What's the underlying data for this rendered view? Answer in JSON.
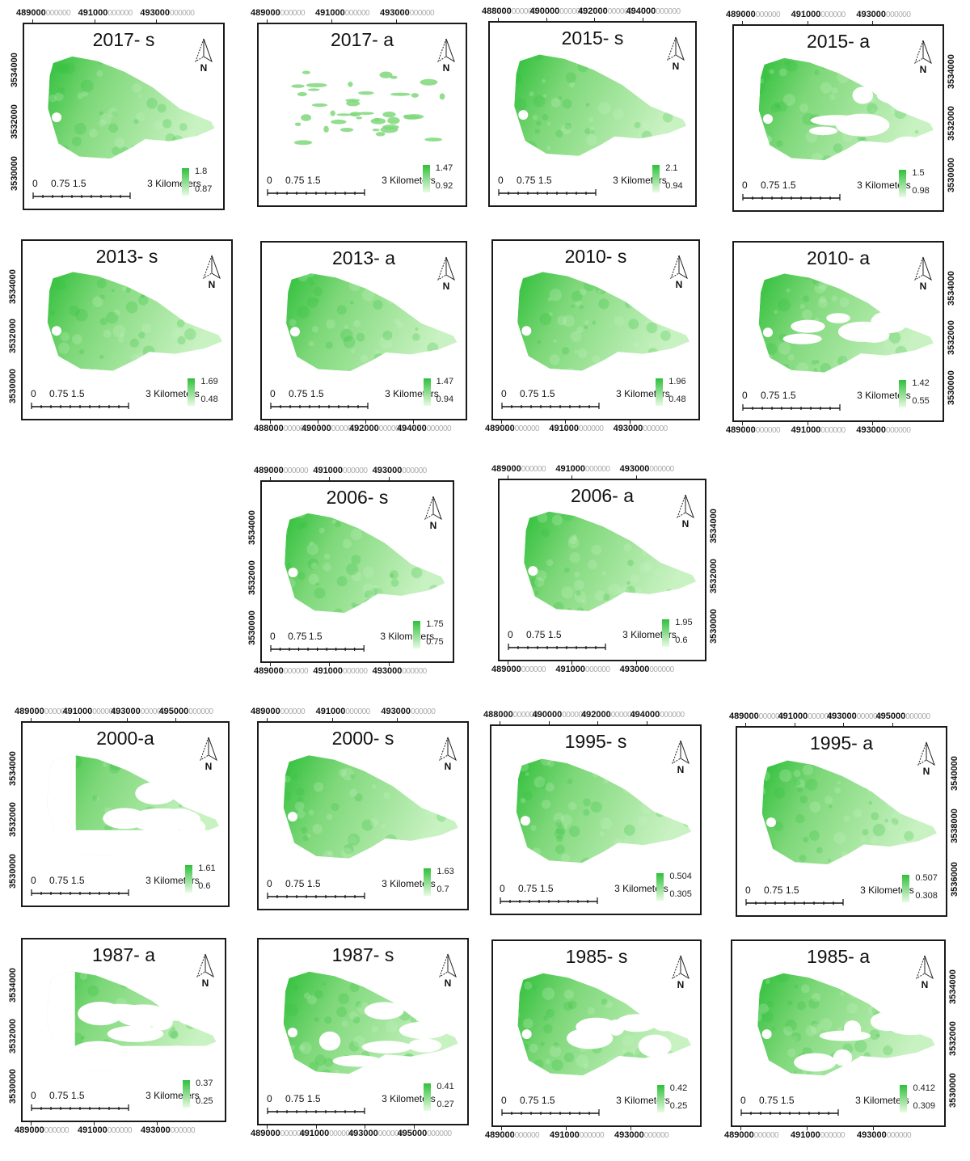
{
  "panels": [
    {
      "id": "p2017s",
      "title": "2017- s",
      "legend_max": "1.8",
      "legend_min": "0.87",
      "x_axis_pos": "top",
      "x_axis_labels": [
        "489000",
        "491000",
        "493000"
      ],
      "y_axis_pos": "left",
      "y_axis_labels": [
        "3534000",
        "3532000",
        "3530000"
      ],
      "coverage": "full"
    },
    {
      "id": "p2017a",
      "title": "2017- a",
      "legend_max": "1.47",
      "legend_min": "0.92",
      "x_axis_pos": "top",
      "x_axis_labels": [
        "489000",
        "491000",
        "493000"
      ],
      "y_axis_pos": "none",
      "y_axis_labels": [],
      "coverage": "sparse"
    },
    {
      "id": "p2015s",
      "title": "2015- s",
      "legend_max": "2.1",
      "legend_min": "0.94",
      "x_axis_pos": "top",
      "x_axis_labels": [
        "488000",
        "490000",
        "492000",
        "494000"
      ],
      "y_axis_pos": "none",
      "y_axis_labels": [],
      "coverage": "full"
    },
    {
      "id": "p2015a",
      "title": "2015- a",
      "legend_max": "1.5",
      "legend_min": "0.98",
      "x_axis_pos": "top",
      "x_axis_labels": [
        "489000",
        "491000",
        "493000"
      ],
      "y_axis_pos": "right",
      "y_axis_labels": [
        "3534000",
        "3532000",
        "3530000"
      ],
      "coverage": "partial"
    },
    {
      "id": "p2013s",
      "title": "2013- s",
      "legend_max": "1.69",
      "legend_min": "0.48",
      "x_axis_pos": "none",
      "x_axis_labels": [],
      "y_axis_pos": "left",
      "y_axis_labels": [
        "3534000",
        "3532000",
        "3530000"
      ],
      "coverage": "full"
    },
    {
      "id": "p2013a",
      "title": "2013- a",
      "legend_max": "1.47",
      "legend_min": "0.94",
      "x_axis_pos": "bottom",
      "x_axis_labels": [
        "488000",
        "490000",
        "492000",
        "494000"
      ],
      "y_axis_pos": "none",
      "y_axis_labels": [],
      "coverage": "full"
    },
    {
      "id": "p2010s",
      "title": "2010- s",
      "legend_max": "1.96",
      "legend_min": "0.48",
      "x_axis_pos": "bottom",
      "x_axis_labels": [
        "489000",
        "491000",
        "493000"
      ],
      "y_axis_pos": "none",
      "y_axis_labels": [],
      "coverage": "full"
    },
    {
      "id": "p2010a",
      "title": "2010- a",
      "legend_max": "1.42",
      "legend_min": "0.55",
      "x_axis_pos": "bottom",
      "x_axis_labels": [
        "489000",
        "491000",
        "493000"
      ],
      "y_axis_pos": "right",
      "y_axis_labels": [
        "3534000",
        "3532000",
        "3530000"
      ],
      "coverage": "partial"
    },
    {
      "id": "p2006s",
      "title": "2006- s",
      "legend_max": "1.75",
      "legend_min": "0.75",
      "x_axis_pos": "both",
      "x_axis_labels": [
        "489000",
        "491000",
        "493000"
      ],
      "y_axis_pos": "left",
      "y_axis_labels": [
        "3534000",
        "3532000",
        "3530000"
      ],
      "coverage": "full"
    },
    {
      "id": "p2006a",
      "title": "2006- a",
      "legend_max": "1.95",
      "legend_min": "0.6",
      "x_axis_pos": "both",
      "x_axis_labels": [
        "489000",
        "491000",
        "493000"
      ],
      "y_axis_pos": "right",
      "y_axis_labels": [
        "3534000",
        "3532000",
        "3530000"
      ],
      "coverage": "full"
    },
    {
      "id": "p2000a",
      "title": "2000-a",
      "legend_max": "1.61",
      "legend_min": "0.6",
      "x_axis_pos": "top",
      "x_axis_labels": [
        "489000",
        "491000",
        "493000",
        "495000"
      ],
      "y_axis_pos": "left",
      "y_axis_labels": [
        "3534000",
        "3532000",
        "3530000"
      ],
      "coverage": "small"
    },
    {
      "id": "p2000s",
      "title": "2000- s",
      "legend_max": "1.63",
      "legend_min": "0.7",
      "x_axis_pos": "top",
      "x_axis_labels": [
        "489000",
        "491000",
        "493000"
      ],
      "y_axis_pos": "none",
      "y_axis_labels": [],
      "coverage": "full"
    },
    {
      "id": "p1995s",
      "title": "1995- s",
      "legend_max": "0.504",
      "legend_min": "0.305",
      "x_axis_pos": "top",
      "x_axis_labels": [
        "488000",
        "490000",
        "492000",
        "494000"
      ],
      "y_axis_pos": "none",
      "y_axis_labels": [],
      "coverage": "full"
    },
    {
      "id": "p1995a",
      "title": "1995- a",
      "legend_max": "0.507",
      "legend_min": "0.308",
      "x_axis_pos": "top",
      "x_axis_labels": [
        "489000",
        "491000",
        "493000",
        "495000"
      ],
      "y_axis_pos": "right",
      "y_axis_labels": [
        "3540000",
        "3538000",
        "3536000"
      ],
      "coverage": "full"
    },
    {
      "id": "p1987a",
      "title": "1987- a",
      "legend_max": "0.37",
      "legend_min": "0.25",
      "x_axis_pos": "bottom",
      "x_axis_labels": [
        "489000",
        "491000",
        "493000"
      ],
      "y_axis_pos": "left",
      "y_axis_labels": [
        "3534000",
        "3532000",
        "3530000"
      ],
      "coverage": "small"
    },
    {
      "id": "p1987s",
      "title": "1987- s",
      "legend_max": "0.41",
      "legend_min": "0.27",
      "x_axis_pos": "bottom",
      "x_axis_labels": [
        "489000",
        "491000",
        "493000",
        "495000"
      ],
      "y_axis_pos": "none",
      "y_axis_labels": [],
      "coverage": "partial"
    },
    {
      "id": "p1985s",
      "title": "1985- s",
      "legend_max": "0.42",
      "legend_min": "0.25",
      "x_axis_pos": "bottom",
      "x_axis_labels": [
        "489000",
        "491000",
        "493000"
      ],
      "y_axis_pos": "none",
      "y_axis_labels": [],
      "coverage": "partial"
    },
    {
      "id": "p1985a",
      "title": "1985- a",
      "legend_max": "0.412",
      "legend_min": "0.309",
      "x_axis_pos": "bottom",
      "x_axis_labels": [
        "489000",
        "491000",
        "493000"
      ],
      "y_axis_pos": "right",
      "y_axis_labels": [
        "3534000",
        "3532000",
        "3530000"
      ],
      "coverage": "partial"
    }
  ],
  "scalebar": {
    "ticks": [
      "0",
      "0.75",
      "1.5",
      "3 Kilometers"
    ]
  },
  "north_label": "N",
  "zeros_suffix": "000000",
  "colors": {
    "lake_dark": "#2fbf3a",
    "lake_mid": "#7fd87a",
    "lake_light": "#c9f2c2",
    "frame": "#1a1a1a"
  }
}
